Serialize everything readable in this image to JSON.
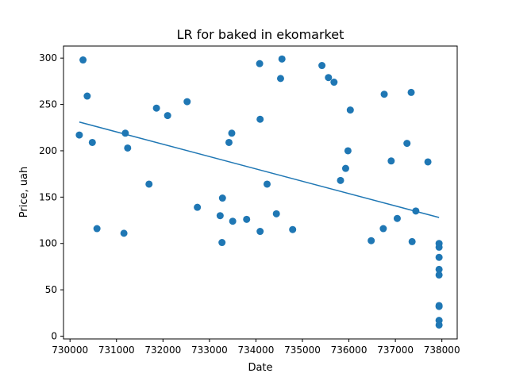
{
  "chart_data": {
    "type": "scatter",
    "title": "LR for baked in ekomarket",
    "xlabel": "Date",
    "ylabel": "Price, uah",
    "xlim": [
      729860,
      738330
    ],
    "ylim": [
      -3,
      313
    ],
    "xticks": [
      730000,
      731000,
      732000,
      733000,
      734000,
      735000,
      736000,
      737000,
      738000
    ],
    "yticks": [
      0,
      50,
      100,
      150,
      200,
      250,
      300
    ],
    "grid": false,
    "colors": {
      "points": "#1f77b4",
      "line": "#1f77b4"
    },
    "series": [
      {
        "type": "scatter",
        "points": [
          [
            730200,
            217
          ],
          [
            730280,
            298
          ],
          [
            730370,
            259
          ],
          [
            730480,
            209
          ],
          [
            730580,
            116
          ],
          [
            731160,
            111
          ],
          [
            731190,
            219
          ],
          [
            731240,
            203
          ],
          [
            731700,
            164
          ],
          [
            731860,
            246
          ],
          [
            732100,
            238
          ],
          [
            732520,
            253
          ],
          [
            732740,
            139
          ],
          [
            733230,
            130
          ],
          [
            733270,
            101
          ],
          [
            733280,
            149
          ],
          [
            733420,
            209
          ],
          [
            733480,
            219
          ],
          [
            733500,
            124
          ],
          [
            733800,
            126
          ],
          [
            734080,
            294
          ],
          [
            734090,
            234
          ],
          [
            734090,
            113
          ],
          [
            734240,
            164
          ],
          [
            734440,
            132
          ],
          [
            734530,
            278
          ],
          [
            734560,
            299
          ],
          [
            734790,
            115
          ],
          [
            735420,
            292
          ],
          [
            735560,
            279
          ],
          [
            735680,
            274
          ],
          [
            735820,
            168
          ],
          [
            735930,
            181
          ],
          [
            735980,
            200
          ],
          [
            736030,
            244
          ],
          [
            736480,
            103
          ],
          [
            736740,
            116
          ],
          [
            736760,
            261
          ],
          [
            736910,
            189
          ],
          [
            737040,
            127
          ],
          [
            737250,
            208
          ],
          [
            737340,
            263
          ],
          [
            737360,
            102
          ],
          [
            737440,
            135
          ],
          [
            737700,
            188
          ],
          [
            737940,
            100
          ],
          [
            737940,
            96
          ],
          [
            737940,
            85
          ],
          [
            737940,
            72
          ],
          [
            737940,
            66
          ],
          [
            737940,
            33
          ],
          [
            737940,
            32
          ],
          [
            737940,
            17
          ],
          [
            737940,
            12
          ]
        ]
      },
      {
        "type": "line",
        "points": [
          [
            730200,
            231
          ],
          [
            737940,
            128
          ]
        ]
      }
    ]
  }
}
